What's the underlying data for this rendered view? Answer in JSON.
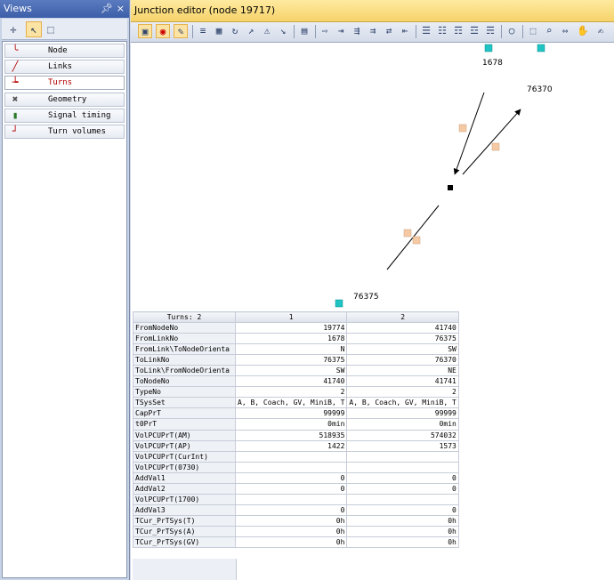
{
  "views": {
    "title": "Views",
    "pin": "Θ",
    "close": "×",
    "items": [
      {
        "label": "Node",
        "icon": "node-icon"
      },
      {
        "label": "Links",
        "icon": "links-icon"
      },
      {
        "label": "Turns",
        "icon": "turns-icon",
        "selected": true
      },
      {
        "label": "Geometry",
        "icon": "geometry-icon"
      },
      {
        "label": "Signal timing",
        "icon": "signal-timing-icon"
      },
      {
        "label": "Turn volumes",
        "icon": "turn-volumes-icon"
      }
    ]
  },
  "editor": {
    "title": "Junction editor (node 19717)"
  },
  "canvas": {
    "node_labels": [
      "1678",
      "76370",
      "76375"
    ]
  },
  "grid": {
    "corner": "Turns: 2",
    "columns": [
      "1",
      "2"
    ],
    "rows": [
      {
        "name": "FromNodeNo",
        "values": [
          "19774",
          "41740"
        ]
      },
      {
        "name": "FromLinkNo",
        "values": [
          "1678",
          "76375"
        ]
      },
      {
        "name": "FromLink\\ToNodeOrienta",
        "values": [
          "N",
          "SW"
        ]
      },
      {
        "name": "ToLinkNo",
        "values": [
          "76375",
          "76370"
        ]
      },
      {
        "name": "ToLink\\FromNodeOrienta",
        "values": [
          "SW",
          "NE"
        ]
      },
      {
        "name": "ToNodeNo",
        "values": [
          "41740",
          "41741"
        ]
      },
      {
        "name": "TypeNo",
        "values": [
          "2",
          "2"
        ]
      },
      {
        "name": "TSysSet",
        "values": [
          "A, B, Coach, GV, MiniB, T",
          "A, B, Coach, GV, MiniB, T"
        ]
      },
      {
        "name": "CapPrT",
        "values": [
          "99999",
          "99999"
        ]
      },
      {
        "name": "t0PrT",
        "values": [
          "0min",
          "0min"
        ]
      },
      {
        "name": "VolPCUPrT(AM)",
        "values": [
          "518935",
          "574032"
        ]
      },
      {
        "name": "VolPCUPrT(AP)",
        "values": [
          "1422",
          "1573"
        ]
      },
      {
        "name": "VolPCUPrT(CurInt)",
        "values": [
          "",
          ""
        ]
      },
      {
        "name": "VolPCUPrT(0730)",
        "values": [
          "",
          ""
        ]
      },
      {
        "name": "AddVal1",
        "values": [
          "0",
          "0"
        ]
      },
      {
        "name": "AddVal2",
        "values": [
          "0",
          "0"
        ]
      },
      {
        "name": "VolPCUPrT(1700)",
        "values": [
          "",
          ""
        ]
      },
      {
        "name": "AddVal3",
        "values": [
          "0",
          "0"
        ]
      },
      {
        "name": "TCur_PrTSys(T)",
        "values": [
          "0h",
          "0h"
        ]
      },
      {
        "name": "TCur_PrTSys(A)",
        "values": [
          "0h",
          "0h"
        ]
      },
      {
        "name": "TCur_PrTSys(GV)",
        "values": [
          "0h",
          "0h"
        ]
      }
    ]
  },
  "colors": {
    "node_marker": "#20c4c4",
    "link_handle": "#f5c9a4",
    "title_bar": "#f6d36a",
    "selected_view": "#b30000"
  }
}
